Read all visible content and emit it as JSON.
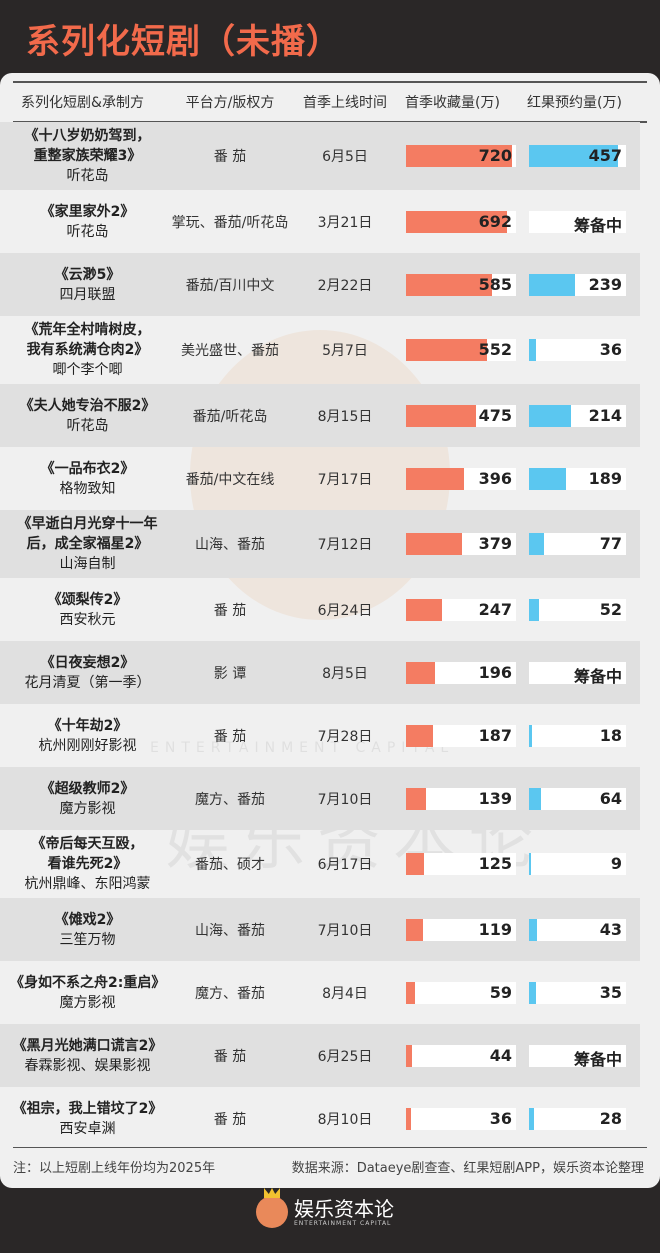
{
  "title": "系列化短剧（未播）",
  "colors": {
    "collect_bar": "#f47c62",
    "hongguo_bar": "#5bc7f0",
    "title": "#f26a4b",
    "bg_dark": "#2a2727"
  },
  "header": {
    "c1": "系列化短剧&承制方",
    "c2": "平台方/版权方",
    "c3": "首季上线时间",
    "c4": "首季收藏量(万)",
    "c5": "红果预约量(万)"
  },
  "chart_data": {
    "type": "table",
    "columns": [
      "系列化短剧&承制方",
      "平台方/版权方",
      "首季上线时间",
      "首季收藏量(万)",
      "红果预约量(万)"
    ],
    "rows": [
      {
        "title": [
          "《十八岁奶奶驾到，",
          "重整家族荣耀3》"
        ],
        "producer": "听花岛",
        "platform": "番 茄",
        "date": "6月5日",
        "collect": 720,
        "hongguo": 457,
        "hongguo_text": "457"
      },
      {
        "title": [
          "《家里家外2》"
        ],
        "producer": "听花岛",
        "platform": "掌玩、番茄/听花岛",
        "date": "3月21日",
        "collect": 692,
        "hongguo": null,
        "hongguo_text": "筹备中"
      },
      {
        "title": [
          "《云渺5》"
        ],
        "producer": "四月联盟",
        "platform": "番茄/百川中文",
        "date": "2月22日",
        "collect": 585,
        "hongguo": 239,
        "hongguo_text": "239"
      },
      {
        "title": [
          "《荒年全村啃树皮，",
          "我有系统满仓肉2》"
        ],
        "producer": "唧个李个唧",
        "platform": "美光盛世、番茄",
        "date": "5月7日",
        "collect": 552,
        "hongguo": 36,
        "hongguo_text": "36"
      },
      {
        "title": [
          "《夫人她专治不服2》"
        ],
        "producer": "听花岛",
        "platform": "番茄/听花岛",
        "date": "8月15日",
        "collect": 475,
        "hongguo": 214,
        "hongguo_text": "214"
      },
      {
        "title": [
          "《一品布衣2》"
        ],
        "producer": "格物致知",
        "platform": "番茄/中文在线",
        "date": "7月17日",
        "collect": 396,
        "hongguo": 189,
        "hongguo_text": "189"
      },
      {
        "title": [
          "《早逝白月光穿十一年",
          "后，成全家福星2》"
        ],
        "producer": "山海自制",
        "platform": "山海、番茄",
        "date": "7月12日",
        "collect": 379,
        "hongguo": 77,
        "hongguo_text": "77"
      },
      {
        "title": [
          "《颂梨传2》"
        ],
        "producer": "西安秋元",
        "platform": "番 茄",
        "date": "6月24日",
        "collect": 247,
        "hongguo": 52,
        "hongguo_text": "52"
      },
      {
        "title": [
          "《日夜妄想2》"
        ],
        "producer": "花月清夏（第一季）",
        "platform": "影 谭",
        "date": "8月5日",
        "collect": 196,
        "hongguo": null,
        "hongguo_text": "筹备中"
      },
      {
        "title": [
          "《十年劫2》"
        ],
        "producer": "杭州刚刚好影视",
        "platform": "番 茄",
        "date": "7月28日",
        "collect": 187,
        "hongguo": 18,
        "hongguo_text": "18"
      },
      {
        "title": [
          "《超级教师2》"
        ],
        "producer": "魔方影视",
        "platform": "魔方、番茄",
        "date": "7月10日",
        "collect": 139,
        "hongguo": 64,
        "hongguo_text": "64"
      },
      {
        "title": [
          "《帝后每天互殴，",
          "看谁先死2》"
        ],
        "producer": "杭州鼎峰、东阳鸿蒙",
        "platform": "番茄、硕才",
        "date": "6月17日",
        "collect": 125,
        "hongguo": 9,
        "hongguo_text": "9"
      },
      {
        "title": [
          "《傩戏2》"
        ],
        "producer": "三笙万物",
        "platform": "山海、番茄",
        "date": "7月10日",
        "collect": 119,
        "hongguo": 43,
        "hongguo_text": "43"
      },
      {
        "title": [
          "《身如不系之舟2:重启》"
        ],
        "producer": "魔方影视",
        "platform": "魔方、番茄",
        "date": "8月4日",
        "collect": 59,
        "hongguo": 35,
        "hongguo_text": "35"
      },
      {
        "title": [
          "《黑月光她满口谎言2》"
        ],
        "producer": "春霖影视、娱果影视",
        "platform": "番 茄",
        "date": "6月25日",
        "collect": 44,
        "hongguo": null,
        "hongguo_text": "筹备中"
      },
      {
        "title": [
          "《祖宗，我上错坟了2》"
        ],
        "producer": "西安卓渊",
        "platform": "番 茄",
        "date": "8月10日",
        "collect": 36,
        "hongguo": 28,
        "hongguo_text": "28"
      }
    ]
  },
  "footnote": "注：以上短剧上线年份均为2025年",
  "source": "数据来源：Dataeye剧查查、红果短剧APP，娱乐资本论整理",
  "watermark": {
    "en": "ENTERTAINMENT CAPITAL",
    "cn": "娱乐资本论"
  },
  "logo": {
    "cn": "娱乐资本论",
    "en": "ENTERTAINMENT CAPITAL"
  }
}
